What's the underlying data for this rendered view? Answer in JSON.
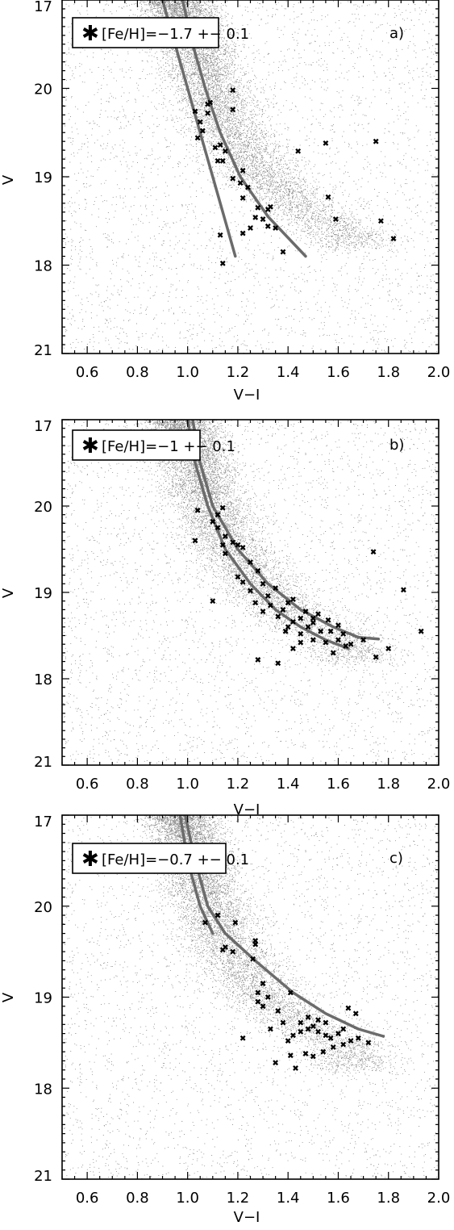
{
  "colors": {
    "background": "#ffffff",
    "field_points": "#8a8a8a",
    "isochrones": "#6b6b6b",
    "members": "#000000",
    "axes": "#000000"
  },
  "chart_data": [
    {
      "type": "scatter",
      "panel_label": "a)",
      "legend": {
        "marker": "asterisk",
        "text": "[Fe/H]=−1.7 +− 0.1",
        "placement": "top-left"
      },
      "xlabel": "V−I",
      "ylabel": "V",
      "xlim": [
        0.5,
        2.0
      ],
      "ylim": [
        21,
        17
      ],
      "x_ticks": [
        "0.6",
        "0.8",
        "1.0",
        "1.2",
        "1.4",
        "1.6",
        "1.8",
        "2.0"
      ],
      "y_ticks": [
        "17",
        "18",
        "19",
        "20",
        "21"
      ],
      "background_field": {
        "description": "dense grey field-star distribution",
        "density_peak_ridge": [
          [
            0.95,
            21.0
          ],
          [
            1.05,
            20.3
          ],
          [
            1.15,
            19.6
          ],
          [
            1.3,
            19.0
          ],
          [
            1.5,
            18.55
          ],
          [
            1.65,
            18.35
          ]
        ]
      },
      "isochrones": [
        [
          [
            0.9,
            21.0
          ],
          [
            0.95,
            20.5
          ],
          [
            1.0,
            20.0
          ],
          [
            1.05,
            19.5
          ],
          [
            1.1,
            19.0
          ],
          [
            1.15,
            18.5
          ],
          [
            1.19,
            18.1
          ]
        ],
        [
          [
            0.98,
            21.0
          ],
          [
            1.02,
            20.5
          ],
          [
            1.07,
            20.0
          ],
          [
            1.13,
            19.5
          ],
          [
            1.21,
            19.0
          ],
          [
            1.32,
            18.55
          ],
          [
            1.47,
            18.1
          ]
        ]
      ],
      "points": [
        [
          1.14,
          18.02
        ],
        [
          1.13,
          18.34
        ],
        [
          1.22,
          18.36
        ],
        [
          1.38,
          18.15
        ],
        [
          1.25,
          18.42
        ],
        [
          1.27,
          18.54
        ],
        [
          1.3,
          18.52
        ],
        [
          1.32,
          18.44
        ],
        [
          1.35,
          18.42
        ],
        [
          1.22,
          18.76
        ],
        [
          1.24,
          18.88
        ],
        [
          1.21,
          18.93
        ],
        [
          1.18,
          18.98
        ],
        [
          1.22,
          19.07
        ],
        [
          1.32,
          18.63
        ],
        [
          1.33,
          18.66
        ],
        [
          1.28,
          18.65
        ],
        [
          1.12,
          19.18
        ],
        [
          1.14,
          19.18
        ],
        [
          1.11,
          19.33
        ],
        [
          1.13,
          19.36
        ],
        [
          1.15,
          19.29
        ],
        [
          1.04,
          19.44
        ],
        [
          1.06,
          19.52
        ],
        [
          1.05,
          19.62
        ],
        [
          1.03,
          19.74
        ],
        [
          1.08,
          19.72
        ],
        [
          1.09,
          19.84
        ],
        [
          1.08,
          19.82
        ],
        [
          1.18,
          19.76
        ],
        [
          1.18,
          19.98
        ],
        [
          1.44,
          19.29
        ],
        [
          1.56,
          18.77
        ],
        [
          1.59,
          18.52
        ],
        [
          1.77,
          18.5
        ],
        [
          1.82,
          18.3
        ],
        [
          1.55,
          19.38
        ],
        [
          1.75,
          19.4
        ]
      ]
    },
    {
      "type": "scatter",
      "panel_label": "b)",
      "legend": {
        "marker": "asterisk",
        "text": "[Fe/H]=−1 +− 0.1",
        "placement": "top-left"
      },
      "xlabel": "V−I",
      "ylabel": "V",
      "xlim": [
        0.5,
        2.0
      ],
      "ylim": [
        21,
        17
      ],
      "x_ticks": [
        "0.6",
        "0.8",
        "1.0",
        "1.2",
        "1.4",
        "1.6",
        "1.8",
        "2.0"
      ],
      "y_ticks": [
        "17",
        "18",
        "19",
        "20",
        "21"
      ],
      "background_field": {
        "description": "dense grey field-star distribution",
        "density_peak_ridge": [
          [
            0.97,
            21.0
          ],
          [
            1.05,
            20.3
          ],
          [
            1.15,
            19.6
          ],
          [
            1.3,
            19.0
          ],
          [
            1.5,
            18.6
          ],
          [
            1.65,
            18.4
          ]
        ]
      },
      "isochrones": [
        [
          [
            1.0,
            21.0
          ],
          [
            1.03,
            20.5
          ],
          [
            1.08,
            20.0
          ],
          [
            1.15,
            19.5
          ],
          [
            1.25,
            19.1
          ],
          [
            1.35,
            18.8
          ],
          [
            1.45,
            18.6
          ],
          [
            1.55,
            18.45
          ],
          [
            1.64,
            18.35
          ]
        ],
        [
          [
            1.02,
            21.0
          ],
          [
            1.05,
            20.5
          ],
          [
            1.1,
            20.0
          ],
          [
            1.2,
            19.5
          ],
          [
            1.32,
            19.1
          ],
          [
            1.45,
            18.8
          ],
          [
            1.58,
            18.6
          ],
          [
            1.68,
            18.48
          ],
          [
            1.76,
            18.46
          ]
        ]
      ],
      "points": [
        [
          1.28,
          18.22
        ],
        [
          1.36,
          18.18
        ],
        [
          1.42,
          18.35
        ],
        [
          1.45,
          18.42
        ],
        [
          1.5,
          18.45
        ],
        [
          1.55,
          18.42
        ],
        [
          1.6,
          18.45
        ],
        [
          1.63,
          18.38
        ],
        [
          1.39,
          18.55
        ],
        [
          1.4,
          18.6
        ],
        [
          1.42,
          18.66
        ],
        [
          1.45,
          18.7
        ],
        [
          1.48,
          18.6
        ],
        [
          1.5,
          18.65
        ],
        [
          1.53,
          18.55
        ],
        [
          1.57,
          18.55
        ],
        [
          1.6,
          18.62
        ],
        [
          1.62,
          18.52
        ],
        [
          1.38,
          18.8
        ],
        [
          1.4,
          18.88
        ],
        [
          1.42,
          18.92
        ],
        [
          1.36,
          18.72
        ],
        [
          1.33,
          18.85
        ],
        [
          1.3,
          18.78
        ],
        [
          1.32,
          18.96
        ],
        [
          1.27,
          18.88
        ],
        [
          1.25,
          19.02
        ],
        [
          1.22,
          19.12
        ],
        [
          1.2,
          19.18
        ],
        [
          1.35,
          19.05
        ],
        [
          1.3,
          19.1
        ],
        [
          1.28,
          19.25
        ],
        [
          1.25,
          19.35
        ],
        [
          1.22,
          19.52
        ],
        [
          1.2,
          19.55
        ],
        [
          1.18,
          19.58
        ],
        [
          1.15,
          19.45
        ],
        [
          1.14,
          19.55
        ],
        [
          1.15,
          19.65
        ],
        [
          1.12,
          19.75
        ],
        [
          1.1,
          19.82
        ],
        [
          1.12,
          19.9
        ],
        [
          1.14,
          19.98
        ],
        [
          1.1,
          18.9
        ],
        [
          1.03,
          19.6
        ],
        [
          1.04,
          19.95
        ],
        [
          1.58,
          18.3
        ],
        [
          1.65,
          18.4
        ],
        [
          1.7,
          18.45
        ],
        [
          1.75,
          18.25
        ],
        [
          1.8,
          18.35
        ],
        [
          1.93,
          18.55
        ],
        [
          1.86,
          19.03
        ],
        [
          1.74,
          19.47
        ],
        [
          1.47,
          18.78
        ],
        [
          1.52,
          18.75
        ],
        [
          1.56,
          18.68
        ],
        [
          1.45,
          18.52
        ],
        [
          1.5,
          18.7
        ]
      ]
    },
    {
      "type": "scatter",
      "panel_label": "c)",
      "legend": {
        "marker": "asterisk",
        "text": "[Fe/H]=−0.7 +− 0.1",
        "placement": "top-left"
      },
      "xlabel": "V−I",
      "ylabel": "V",
      "xlim": [
        0.5,
        2.0
      ],
      "ylim": [
        21,
        17
      ],
      "x_ticks": [
        "0.6",
        "0.8",
        "1.0",
        "1.2",
        "1.4",
        "1.6",
        "1.8",
        "2.0"
      ],
      "y_ticks": [
        "17",
        "18",
        "19",
        "20",
        "21"
      ],
      "background_field": {
        "description": "dense grey field-star distribution",
        "density_peak_ridge": [
          [
            0.97,
            21.0
          ],
          [
            1.05,
            20.3
          ],
          [
            1.15,
            19.6
          ],
          [
            1.3,
            19.0
          ],
          [
            1.5,
            18.65
          ],
          [
            1.65,
            18.45
          ]
        ]
      },
      "isochrones": [
        [
          [
            0.97,
            21.0
          ],
          [
            1.0,
            20.5
          ],
          [
            1.05,
            20.0
          ],
          [
            1.1,
            19.7
          ]
        ],
        [
          [
            0.99,
            21.0
          ],
          [
            1.03,
            20.5
          ],
          [
            1.08,
            20.0
          ],
          [
            1.15,
            19.7
          ],
          [
            1.27,
            19.4
          ],
          [
            1.42,
            19.05
          ],
          [
            1.55,
            18.82
          ],
          [
            1.68,
            18.65
          ],
          [
            1.78,
            18.57
          ]
        ]
      ],
      "points": [
        [
          1.43,
          18.22
        ],
        [
          1.35,
          18.28
        ],
        [
          1.41,
          18.36
        ],
        [
          1.47,
          18.38
        ],
        [
          1.5,
          18.35
        ],
        [
          1.54,
          18.4
        ],
        [
          1.58,
          18.45
        ],
        [
          1.62,
          18.48
        ],
        [
          1.65,
          18.52
        ],
        [
          1.68,
          18.55
        ],
        [
          1.72,
          18.5
        ],
        [
          1.4,
          18.52
        ],
        [
          1.42,
          18.58
        ],
        [
          1.45,
          18.62
        ],
        [
          1.48,
          18.65
        ],
        [
          1.5,
          18.68
        ],
        [
          1.52,
          18.62
        ],
        [
          1.55,
          18.58
        ],
        [
          1.57,
          18.55
        ],
        [
          1.6,
          18.6
        ],
        [
          1.62,
          18.65
        ],
        [
          1.45,
          18.72
        ],
        [
          1.48,
          18.78
        ],
        [
          1.52,
          18.75
        ],
        [
          1.55,
          18.72
        ],
        [
          1.38,
          18.72
        ],
        [
          1.33,
          18.65
        ],
        [
          1.36,
          18.85
        ],
        [
          1.3,
          18.9
        ],
        [
          1.28,
          18.95
        ],
        [
          1.32,
          19.0
        ],
        [
          1.28,
          19.05
        ],
        [
          1.3,
          19.15
        ],
        [
          1.41,
          19.05
        ],
        [
          1.22,
          18.55
        ],
        [
          1.26,
          19.42
        ],
        [
          1.27,
          19.58
        ],
        [
          1.27,
          19.62
        ],
        [
          1.18,
          19.5
        ],
        [
          1.15,
          19.55
        ],
        [
          1.14,
          19.52
        ],
        [
          1.19,
          19.82
        ],
        [
          1.07,
          19.82
        ],
        [
          1.12,
          19.9
        ],
        [
          1.64,
          18.88
        ],
        [
          1.67,
          18.82
        ]
      ]
    }
  ]
}
